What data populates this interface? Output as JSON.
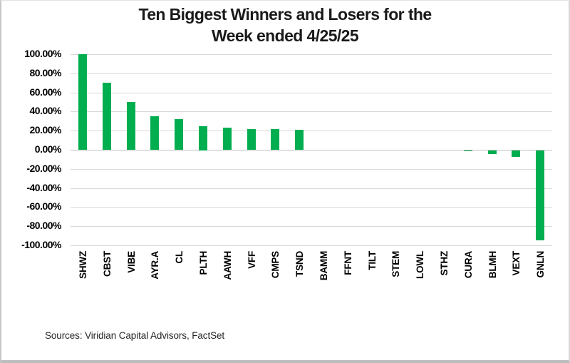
{
  "title": {
    "line1": "Ten Biggest Winners and Losers for the",
    "line2": "Week ended 4/25/25"
  },
  "source_note": "Sources: Viridian Capital Advisors, FactSet",
  "colors": {
    "bar_green": "#00AE50",
    "gridline": "#d9d9d9",
    "zero_line": "#c0c0c0",
    "axis_text": "#000000",
    "title_text": "#1a1a1a",
    "source_text": "#262626"
  },
  "chart_data": {
    "type": "bar",
    "title": "Ten Biggest Winners and Losers for the Week ended 4/25/25",
    "xlabel": "",
    "ylabel": "",
    "categories": [
      "SHWZ",
      "CBST",
      "VIBE",
      "AYR.A",
      "CL",
      "PLTH",
      "AAWH",
      "VFF",
      "CMPS",
      "TSND",
      "BAMM",
      "FFNT",
      "TILT",
      "STEM",
      "LOWL",
      "STHZ",
      "CURA",
      "BLMH",
      "VEXT",
      "GNLN"
    ],
    "values": [
      100,
      70,
      50,
      35,
      32,
      25,
      23,
      22,
      22,
      21,
      0,
      0,
      0,
      0,
      0,
      0,
      -1,
      -4,
      -7,
      -94
    ],
    "value_unit": "percent",
    "ylim": [
      -100,
      100
    ],
    "ytick_step": 20,
    "ytick_format": "0.00%",
    "ytick_labels": [
      "100.00%",
      "80.00%",
      "60.00%",
      "40.00%",
      "20.00%",
      "0.00%",
      "-20.00%",
      "-40.00%",
      "-60.00%",
      "-80.00%",
      "-100.00%"
    ],
    "grid": true,
    "legend": false,
    "bar_orientation": "vertical",
    "x_label_rotation": "vertical-bottom-to-top"
  }
}
